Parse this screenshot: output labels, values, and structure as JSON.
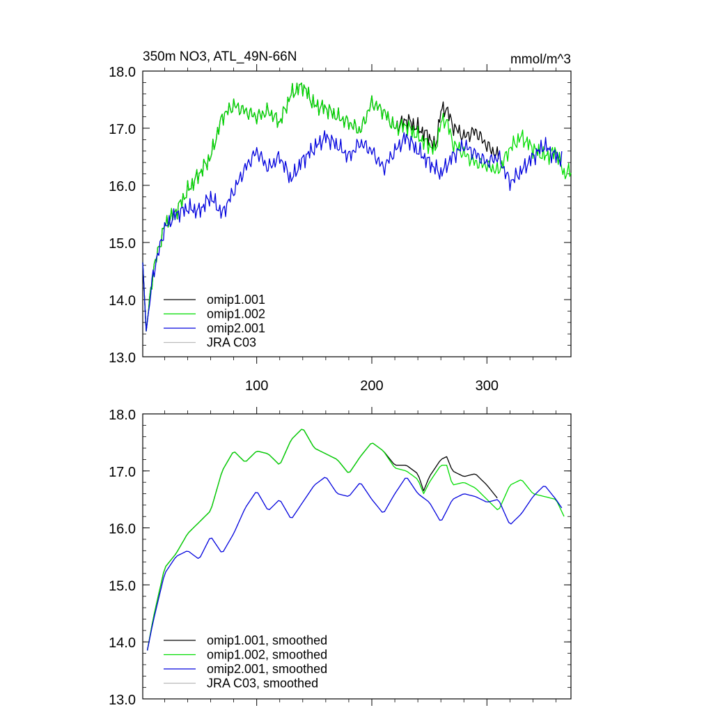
{
  "chart_data": [
    {
      "type": "line",
      "title": "350m NO3, ATL_49N-66N",
      "units": "mmol/m^3",
      "xlim": [
        1,
        373
      ],
      "ylim": [
        13.0,
        18.0
      ],
      "x_ticks": [
        100,
        200,
        300
      ],
      "x_tick_labels": [
        "100",
        "200",
        "300"
      ],
      "y_ticks": [
        13.0,
        14.0,
        15.0,
        16.0,
        17.0,
        18.0
      ],
      "y_tick_labels": [
        "13.0",
        "14.0",
        "15.0",
        "16.0",
        "17.0",
        "18.0"
      ],
      "legend_position": "bottom-left",
      "series": [
        {
          "name": "omip1.001",
          "color": "#000000",
          "x_end": 310,
          "points": [
            [
              1,
              14.65
            ],
            [
              4,
              13.45
            ],
            [
              10,
              14.5
            ],
            [
              20,
              15.3
            ],
            [
              30,
              15.55
            ],
            [
              40,
              15.9
            ],
            [
              50,
              16.2
            ],
            [
              60,
              16.5
            ],
            [
              70,
              17.2
            ],
            [
              80,
              17.4
            ],
            [
              90,
              17.3
            ],
            [
              100,
              17.2
            ],
            [
              110,
              17.3
            ],
            [
              120,
              17.1
            ],
            [
              130,
              17.6
            ],
            [
              140,
              17.75
            ],
            [
              150,
              17.4
            ],
            [
              160,
              17.35
            ],
            [
              170,
              17.2
            ],
            [
              180,
              17.1
            ],
            [
              190,
              16.95
            ],
            [
              200,
              17.45
            ],
            [
              210,
              17.3
            ],
            [
              220,
              17.0
            ],
            [
              230,
              17.15
            ],
            [
              240,
              17.0
            ],
            [
              250,
              16.85
            ],
            [
              255,
              16.65
            ],
            [
              260,
              17.3
            ],
            [
              265,
              17.35
            ],
            [
              270,
              17.05
            ],
            [
              280,
              16.85
            ],
            [
              290,
              16.95
            ],
            [
              300,
              16.7
            ],
            [
              310,
              16.5
            ]
          ]
        },
        {
          "name": "omip1.002",
          "color": "#00dd00",
          "x_end": 373,
          "points": [
            [
              1,
              14.65
            ],
            [
              4,
              13.45
            ],
            [
              10,
              14.5
            ],
            [
              20,
              15.3
            ],
            [
              30,
              15.55
            ],
            [
              40,
              15.9
            ],
            [
              50,
              16.2
            ],
            [
              60,
              16.5
            ],
            [
              70,
              17.2
            ],
            [
              80,
              17.4
            ],
            [
              90,
              17.3
            ],
            [
              100,
              17.2
            ],
            [
              110,
              17.3
            ],
            [
              120,
              17.1
            ],
            [
              130,
              17.6
            ],
            [
              140,
              17.75
            ],
            [
              150,
              17.4
            ],
            [
              160,
              17.35
            ],
            [
              170,
              17.2
            ],
            [
              180,
              17.1
            ],
            [
              190,
              16.95
            ],
            [
              200,
              17.45
            ],
            [
              210,
              17.3
            ],
            [
              220,
              17.0
            ],
            [
              230,
              17.05
            ],
            [
              240,
              16.85
            ],
            [
              250,
              16.7
            ],
            [
              255,
              16.6
            ],
            [
              260,
              17.1
            ],
            [
              265,
              17.15
            ],
            [
              270,
              16.75
            ],
            [
              280,
              16.55
            ],
            [
              290,
              16.4
            ],
            [
              300,
              16.35
            ],
            [
              310,
              16.25
            ],
            [
              320,
              16.65
            ],
            [
              330,
              16.85
            ],
            [
              340,
              16.65
            ],
            [
              350,
              16.5
            ],
            [
              360,
              16.6
            ],
            [
              367,
              16.2
            ],
            [
              373,
              16.25
            ]
          ]
        },
        {
          "name": "omip2.001",
          "color": "#0000dd",
          "x_end": 365,
          "points": [
            [
              1,
              14.65
            ],
            [
              4,
              13.45
            ],
            [
              10,
              14.45
            ],
            [
              20,
              15.25
            ],
            [
              30,
              15.5
            ],
            [
              40,
              15.6
            ],
            [
              50,
              15.55
            ],
            [
              60,
              15.8
            ],
            [
              70,
              15.5
            ],
            [
              80,
              15.9
            ],
            [
              90,
              16.3
            ],
            [
              100,
              16.6
            ],
            [
              110,
              16.3
            ],
            [
              120,
              16.5
            ],
            [
              130,
              16.1
            ],
            [
              140,
              16.45
            ],
            [
              150,
              16.65
            ],
            [
              160,
              16.85
            ],
            [
              170,
              16.7
            ],
            [
              180,
              16.5
            ],
            [
              190,
              16.75
            ],
            [
              200,
              16.6
            ],
            [
              210,
              16.3
            ],
            [
              220,
              16.6
            ],
            [
              230,
              16.85
            ],
            [
              240,
              16.6
            ],
            [
              250,
              16.4
            ],
            [
              260,
              16.2
            ],
            [
              270,
              16.5
            ],
            [
              280,
              16.7
            ],
            [
              290,
              16.55
            ],
            [
              300,
              16.4
            ],
            [
              310,
              16.5
            ],
            [
              320,
              16.05
            ],
            [
              330,
              16.25
            ],
            [
              340,
              16.5
            ],
            [
              350,
              16.7
            ],
            [
              357,
              16.55
            ],
            [
              365,
              16.45
            ]
          ]
        },
        {
          "name": "JRA C03",
          "color": "#bbbbbb",
          "points": []
        }
      ]
    },
    {
      "type": "line",
      "title": "",
      "units": "",
      "xlim": [
        1,
        373
      ],
      "ylim": [
        13.0,
        18.0
      ],
      "x_ticks": [
        100,
        200,
        300
      ],
      "x_tick_labels": [],
      "y_ticks": [
        13.0,
        14.0,
        15.0,
        16.0,
        17.0,
        18.0
      ],
      "y_tick_labels": [
        "13.0",
        "14.0",
        "15.0",
        "16.0",
        "17.0",
        "18.0"
      ],
      "legend_position": "bottom-left",
      "series": [
        {
          "name": "omip1.001, smoothed",
          "color": "#000000",
          "points": [
            [
              5,
              13.85
            ],
            [
              10,
              14.4
            ],
            [
              20,
              15.3
            ],
            [
              30,
              15.55
            ],
            [
              40,
              15.9
            ],
            [
              50,
              16.1
            ],
            [
              60,
              16.3
            ],
            [
              70,
              17.0
            ],
            [
              80,
              17.35
            ],
            [
              90,
              17.15
            ],
            [
              100,
              17.35
            ],
            [
              110,
              17.3
            ],
            [
              120,
              17.1
            ],
            [
              130,
              17.55
            ],
            [
              140,
              17.75
            ],
            [
              150,
              17.4
            ],
            [
              160,
              17.3
            ],
            [
              170,
              17.2
            ],
            [
              180,
              16.95
            ],
            [
              190,
              17.25
            ],
            [
              200,
              17.5
            ],
            [
              210,
              17.35
            ],
            [
              220,
              17.1
            ],
            [
              230,
              17.1
            ],
            [
              240,
              16.95
            ],
            [
              245,
              16.65
            ],
            [
              250,
              16.9
            ],
            [
              260,
              17.2
            ],
            [
              265,
              17.25
            ],
            [
              270,
              17.0
            ],
            [
              280,
              16.9
            ],
            [
              290,
              16.95
            ],
            [
              300,
              16.75
            ],
            [
              310,
              16.5
            ]
          ]
        },
        {
          "name": "omip1.002, smoothed",
          "color": "#00dd00",
          "points": [
            [
              5,
              13.85
            ],
            [
              10,
              14.4
            ],
            [
              20,
              15.3
            ],
            [
              30,
              15.55
            ],
            [
              40,
              15.9
            ],
            [
              50,
              16.1
            ],
            [
              60,
              16.3
            ],
            [
              70,
              17.0
            ],
            [
              80,
              17.35
            ],
            [
              90,
              17.15
            ],
            [
              100,
              17.35
            ],
            [
              110,
              17.3
            ],
            [
              120,
              17.1
            ],
            [
              130,
              17.55
            ],
            [
              140,
              17.75
            ],
            [
              150,
              17.4
            ],
            [
              160,
              17.3
            ],
            [
              170,
              17.2
            ],
            [
              180,
              16.95
            ],
            [
              190,
              17.25
            ],
            [
              200,
              17.5
            ],
            [
              210,
              17.35
            ],
            [
              220,
              17.05
            ],
            [
              230,
              17.0
            ],
            [
              240,
              16.85
            ],
            [
              245,
              16.6
            ],
            [
              250,
              16.8
            ],
            [
              260,
              17.1
            ],
            [
              265,
              17.1
            ],
            [
              270,
              16.75
            ],
            [
              280,
              16.8
            ],
            [
              290,
              16.7
            ],
            [
              300,
              16.5
            ],
            [
              310,
              16.3
            ],
            [
              320,
              16.75
            ],
            [
              330,
              16.85
            ],
            [
              340,
              16.6
            ],
            [
              350,
              16.55
            ],
            [
              360,
              16.5
            ],
            [
              367,
              16.2
            ]
          ]
        },
        {
          "name": "omip2.001, smoothed",
          "color": "#0000dd",
          "points": [
            [
              5,
              13.85
            ],
            [
              10,
              14.35
            ],
            [
              20,
              15.2
            ],
            [
              30,
              15.5
            ],
            [
              40,
              15.6
            ],
            [
              50,
              15.45
            ],
            [
              60,
              15.85
            ],
            [
              70,
              15.55
            ],
            [
              80,
              15.9
            ],
            [
              90,
              16.35
            ],
            [
              100,
              16.65
            ],
            [
              110,
              16.3
            ],
            [
              120,
              16.5
            ],
            [
              130,
              16.15
            ],
            [
              140,
              16.45
            ],
            [
              150,
              16.75
            ],
            [
              160,
              16.9
            ],
            [
              170,
              16.6
            ],
            [
              180,
              16.55
            ],
            [
              190,
              16.8
            ],
            [
              200,
              16.5
            ],
            [
              210,
              16.25
            ],
            [
              220,
              16.6
            ],
            [
              230,
              16.9
            ],
            [
              240,
              16.6
            ],
            [
              250,
              16.45
            ],
            [
              260,
              16.1
            ],
            [
              270,
              16.5
            ],
            [
              280,
              16.6
            ],
            [
              290,
              16.55
            ],
            [
              300,
              16.45
            ],
            [
              310,
              16.5
            ],
            [
              320,
              16.05
            ],
            [
              330,
              16.25
            ],
            [
              340,
              16.55
            ],
            [
              350,
              16.75
            ],
            [
              360,
              16.5
            ],
            [
              365,
              16.35
            ]
          ]
        },
        {
          "name": "JRA C03, smoothed",
          "color": "#bbbbbb",
          "points": []
        }
      ]
    }
  ]
}
